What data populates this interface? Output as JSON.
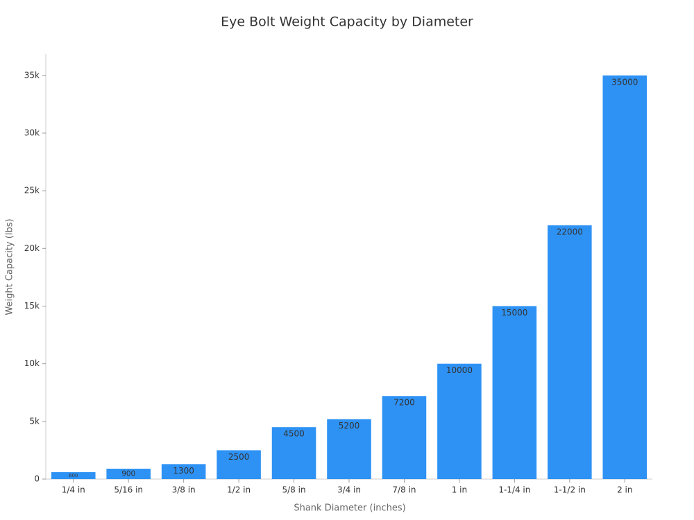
{
  "chart_data": {
    "type": "bar",
    "title": "Eye Bolt Weight Capacity by Diameter",
    "x_label": "Shank Diameter (inches)",
    "y_label": "Weight Capacity (lbs)",
    "categories": [
      "1/4 in",
      "5/16 in",
      "3/8 in",
      "1/2 in",
      "5/8 in",
      "3/4 in",
      "7/8 in",
      "1 in",
      "1-1/4 in",
      "1-1/2 in",
      "2 in"
    ],
    "values": [
      600,
      900,
      1300,
      2500,
      4500,
      5200,
      7200,
      10000,
      15000,
      22000,
      35000
    ],
    "color": "#2e92f5",
    "ylim": [
      0,
      36850
    ],
    "yticks": [
      0,
      {
        "value": 5000,
        "label": "5k"
      },
      {
        "value": 10000,
        "label": "10k"
      },
      {
        "value": 15000,
        "label": "15k"
      },
      {
        "value": 20000,
        "label": "20k"
      },
      {
        "value": 25000,
        "label": "25k"
      },
      {
        "value": 30000,
        "label": "30k"
      },
      {
        "value": 35000,
        "label": "35k"
      }
    ],
    "grid": false
  }
}
